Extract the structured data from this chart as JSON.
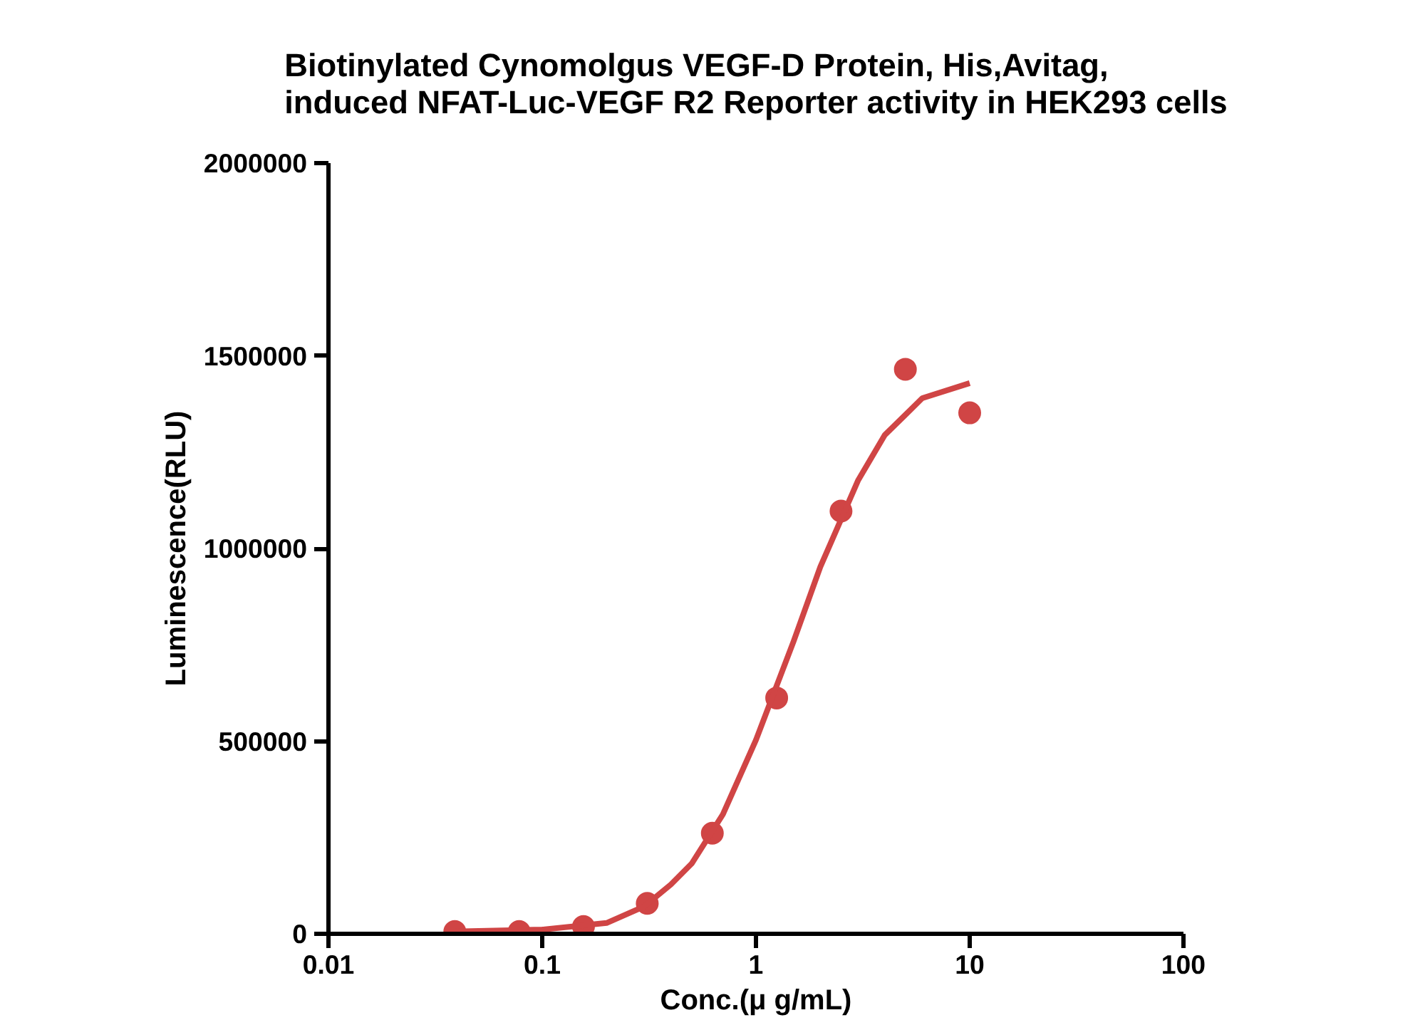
{
  "chart_data": {
    "type": "scatter",
    "title": "Biotinylated Cynomolgus VEGF-D Protein, His,Avitag,\ninduced NFAT-Luc-VEGF R2 Reporter activity in HEK293 cells",
    "xlabel": "Conc.(μ g/mL)",
    "ylabel": "Luminescence(RLU)",
    "log": "x",
    "xlim": [
      0.01,
      100
    ],
    "xticks": [
      0.01,
      0.1,
      1,
      10,
      100
    ],
    "ylim": [
      0,
      2000000
    ],
    "yticks": [
      0,
      500000,
      1000000,
      1500000,
      2000000
    ],
    "grid": false,
    "series": [
      {
        "color": "#d04545",
        "marker": "circle",
        "x": [
          0.039,
          0.078,
          0.156,
          0.31,
          0.625,
          1.25,
          2.5,
          5,
          10
        ],
        "values": [
          6000,
          6000,
          19000,
          79000,
          261000,
          612000,
          1097000,
          1465000,
          1352000
        ]
      },
      {
        "type": "line",
        "color": "#d04545",
        "line_style": "solid",
        "marker": "none",
        "x": [
          0.039,
          0.1,
          0.2,
          0.3,
          0.4,
          0.5,
          0.7,
          1,
          1.5,
          2,
          3,
          4,
          6,
          10
        ],
        "values": [
          6000,
          11000,
          28000,
          71000,
          128000,
          182000,
          310000,
          503000,
          759000,
          952000,
          1176000,
          1294000,
          1390000,
          1429000
        ]
      }
    ]
  }
}
